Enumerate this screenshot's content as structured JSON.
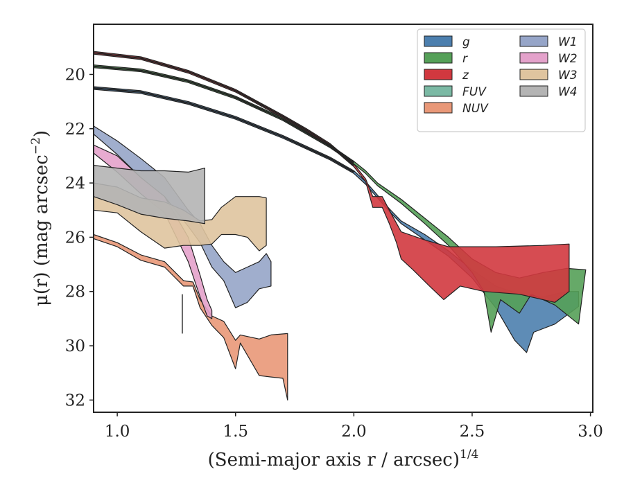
{
  "chart_data": {
    "type": "area",
    "xlabel": "(Semi-major axis r / arcsec)",
    "xlabel_sup": "1/4",
    "xlabel_italic_var": "r",
    "ylabel": "μ(r) (mag arcsec",
    "ylabel_sup": "−2",
    "xlim": [
      0.9,
      3.01
    ],
    "ylim": [
      32.45,
      18.15
    ],
    "y_inverted": true,
    "xticks": [
      1.0,
      1.5,
      2.0,
      2.5,
      3.0
    ],
    "xtick_labels": [
      "1.0",
      "1.5",
      "2.0",
      "2.5",
      "3.0"
    ],
    "yticks": [
      20,
      22,
      24,
      26,
      28,
      30,
      32
    ],
    "ytick_labels": [
      "20",
      "22",
      "24",
      "26",
      "28",
      "30",
      "32"
    ],
    "legend_position": "top-right",
    "legend_columns": 2,
    "series": [
      {
        "name": "g",
        "color": "#4c7fae",
        "upper": [
          [
            0.9,
            20.45
          ],
          [
            1.1,
            20.6
          ],
          [
            1.3,
            21.0
          ],
          [
            1.5,
            21.55
          ],
          [
            1.7,
            22.25
          ],
          [
            1.8,
            22.65
          ],
          [
            1.9,
            23.05
          ],
          [
            2.0,
            23.55
          ],
          [
            2.05,
            23.95
          ],
          [
            2.1,
            24.45
          ],
          [
            2.15,
            24.95
          ],
          [
            2.2,
            25.4
          ],
          [
            2.3,
            25.9
          ],
          [
            2.4,
            26.5
          ],
          [
            2.5,
            27.2
          ],
          [
            2.6,
            27.8
          ],
          [
            2.7,
            28.1
          ],
          [
            2.8,
            28.2
          ],
          [
            2.9,
            28.0
          ],
          [
            2.95,
            28.0
          ]
        ],
        "lower": [
          [
            0.9,
            20.55
          ],
          [
            1.1,
            20.7
          ],
          [
            1.3,
            21.1
          ],
          [
            1.5,
            21.65
          ],
          [
            1.7,
            22.35
          ],
          [
            1.8,
            22.75
          ],
          [
            1.9,
            23.15
          ],
          [
            2.0,
            23.65
          ],
          [
            2.05,
            24.05
          ],
          [
            2.1,
            24.55
          ],
          [
            2.15,
            25.05
          ],
          [
            2.2,
            25.5
          ],
          [
            2.3,
            26.1
          ],
          [
            2.4,
            26.7
          ],
          [
            2.5,
            27.5
          ],
          [
            2.6,
            28.6
          ],
          [
            2.68,
            29.8
          ],
          [
            2.73,
            30.25
          ],
          [
            2.76,
            29.5
          ],
          [
            2.85,
            29.2
          ],
          [
            2.95,
            28.55
          ]
        ]
      },
      {
        "name": "r",
        "color": "#55a058",
        "upper": [
          [
            0.9,
            19.65
          ],
          [
            1.1,
            19.8
          ],
          [
            1.3,
            20.2
          ],
          [
            1.5,
            20.8
          ],
          [
            1.7,
            21.6
          ],
          [
            1.8,
            22.1
          ],
          [
            1.9,
            22.6
          ],
          [
            2.0,
            23.2
          ],
          [
            2.05,
            23.55
          ],
          [
            2.1,
            24.0
          ],
          [
            2.2,
            24.6
          ],
          [
            2.3,
            25.3
          ],
          [
            2.4,
            26.0
          ],
          [
            2.5,
            26.8
          ],
          [
            2.6,
            27.3
          ],
          [
            2.7,
            27.5
          ],
          [
            2.8,
            27.3
          ],
          [
            2.9,
            27.15
          ],
          [
            2.98,
            27.2
          ]
        ],
        "lower": [
          [
            0.9,
            19.75
          ],
          [
            1.1,
            19.9
          ],
          [
            1.3,
            20.3
          ],
          [
            1.5,
            20.9
          ],
          [
            1.7,
            21.7
          ],
          [
            1.8,
            22.2
          ],
          [
            1.9,
            22.7
          ],
          [
            2.0,
            23.3
          ],
          [
            2.05,
            23.65
          ],
          [
            2.1,
            24.1
          ],
          [
            2.2,
            24.75
          ],
          [
            2.3,
            25.5
          ],
          [
            2.4,
            26.3
          ],
          [
            2.5,
            27.3
          ],
          [
            2.55,
            28.0
          ],
          [
            2.58,
            29.5
          ],
          [
            2.62,
            28.3
          ],
          [
            2.7,
            28.8
          ],
          [
            2.75,
            28.1
          ],
          [
            2.85,
            28.5
          ],
          [
            2.95,
            29.2
          ]
        ]
      },
      {
        "name": "z",
        "color": "#d1383f",
        "upper": [
          [
            0.9,
            19.15
          ],
          [
            1.1,
            19.35
          ],
          [
            1.3,
            19.85
          ],
          [
            1.5,
            20.55
          ],
          [
            1.7,
            21.5
          ],
          [
            1.8,
            22.0
          ],
          [
            1.9,
            22.55
          ],
          [
            2.0,
            23.3
          ],
          [
            2.05,
            23.85
          ],
          [
            2.08,
            24.5
          ],
          [
            2.12,
            24.5
          ],
          [
            2.15,
            25.0
          ],
          [
            2.2,
            25.8
          ],
          [
            2.3,
            26.1
          ],
          [
            2.4,
            26.35
          ],
          [
            2.6,
            26.35
          ],
          [
            2.8,
            26.3
          ],
          [
            2.91,
            26.25
          ]
        ],
        "lower": [
          [
            0.9,
            19.25
          ],
          [
            1.1,
            19.45
          ],
          [
            1.3,
            19.95
          ],
          [
            1.5,
            20.65
          ],
          [
            1.7,
            21.6
          ],
          [
            1.8,
            22.1
          ],
          [
            1.9,
            22.65
          ],
          [
            2.0,
            23.4
          ],
          [
            2.05,
            23.95
          ],
          [
            2.08,
            24.9
          ],
          [
            2.12,
            24.9
          ],
          [
            2.15,
            25.5
          ],
          [
            2.18,
            26.2
          ],
          [
            2.2,
            26.8
          ],
          [
            2.25,
            27.2
          ],
          [
            2.32,
            27.8
          ],
          [
            2.38,
            28.3
          ],
          [
            2.45,
            27.8
          ],
          [
            2.55,
            28.0
          ],
          [
            2.7,
            28.1
          ],
          [
            2.85,
            28.4
          ],
          [
            2.91,
            28.0
          ]
        ]
      },
      {
        "name": "FUV",
        "color": "#7bb9a4",
        "upper": [],
        "lower": []
      },
      {
        "name": "NUV",
        "color": "#e99878",
        "upper": [
          [
            0.9,
            25.9
          ],
          [
            1.0,
            26.2
          ],
          [
            1.1,
            26.65
          ],
          [
            1.2,
            26.9
          ],
          [
            1.28,
            27.6
          ],
          [
            1.32,
            27.65
          ],
          [
            1.35,
            28.3
          ],
          [
            1.4,
            28.9
          ],
          [
            1.45,
            29.1
          ],
          [
            1.5,
            29.8
          ],
          [
            1.52,
            29.6
          ],
          [
            1.6,
            29.75
          ],
          [
            1.65,
            29.6
          ],
          [
            1.72,
            29.55
          ]
        ],
        "lower": [
          [
            0.9,
            26.05
          ],
          [
            1.0,
            26.35
          ],
          [
            1.1,
            26.85
          ],
          [
            1.2,
            27.1
          ],
          [
            1.28,
            27.8
          ],
          [
            1.32,
            27.8
          ],
          [
            1.35,
            28.6
          ],
          [
            1.4,
            29.25
          ],
          [
            1.45,
            29.7
          ],
          [
            1.5,
            30.85
          ],
          [
            1.52,
            29.9
          ],
          [
            1.6,
            31.1
          ],
          [
            1.65,
            31.15
          ],
          [
            1.7,
            31.2
          ],
          [
            1.72,
            32.0
          ]
        ]
      },
      {
        "name": "W1",
        "color": "#96a5c8",
        "upper": [
          [
            0.9,
            21.9
          ],
          [
            1.0,
            22.45
          ],
          [
            1.1,
            23.1
          ],
          [
            1.2,
            23.8
          ],
          [
            1.3,
            25.0
          ],
          [
            1.35,
            25.5
          ],
          [
            1.4,
            26.3
          ],
          [
            1.45,
            26.9
          ],
          [
            1.5,
            27.3
          ],
          [
            1.55,
            27.1
          ],
          [
            1.6,
            26.9
          ],
          [
            1.63,
            26.6
          ],
          [
            1.65,
            26.9
          ]
        ],
        "lower": [
          [
            0.9,
            22.2
          ],
          [
            1.0,
            22.95
          ],
          [
            1.1,
            23.8
          ],
          [
            1.2,
            24.5
          ],
          [
            1.3,
            25.6
          ],
          [
            1.35,
            26.2
          ],
          [
            1.4,
            27.1
          ],
          [
            1.45,
            27.6
          ],
          [
            1.5,
            28.6
          ],
          [
            1.55,
            28.4
          ],
          [
            1.6,
            27.9
          ],
          [
            1.65,
            27.8
          ]
        ]
      },
      {
        "name": "W2",
        "color": "#e4a2cb",
        "upper": [
          [
            0.9,
            22.6
          ],
          [
            1.0,
            23.0
          ],
          [
            1.1,
            23.8
          ],
          [
            1.2,
            24.5
          ],
          [
            1.3,
            26.0
          ],
          [
            1.35,
            27.4
          ],
          [
            1.38,
            28.3
          ],
          [
            1.4,
            28.7
          ]
        ],
        "lower": [
          [
            0.9,
            22.9
          ],
          [
            1.0,
            23.6
          ],
          [
            1.1,
            24.4
          ],
          [
            1.2,
            25.1
          ],
          [
            1.3,
            26.9
          ],
          [
            1.35,
            28.2
          ],
          [
            1.38,
            28.9
          ],
          [
            1.4,
            29.0
          ]
        ]
      },
      {
        "name": "W3",
        "color": "#dfc49f",
        "upper": [
          [
            0.9,
            24.0
          ],
          [
            1.0,
            24.15
          ],
          [
            1.1,
            24.55
          ],
          [
            1.2,
            24.7
          ],
          [
            1.28,
            25.0
          ],
          [
            1.35,
            25.4
          ],
          [
            1.4,
            25.35
          ],
          [
            1.44,
            24.9
          ],
          [
            1.5,
            24.5
          ],
          [
            1.55,
            24.5
          ],
          [
            1.6,
            24.5
          ],
          [
            1.63,
            24.55
          ]
        ],
        "lower": [
          [
            0.9,
            25.0
          ],
          [
            1.0,
            25.1
          ],
          [
            1.1,
            25.8
          ],
          [
            1.2,
            26.4
          ],
          [
            1.28,
            26.3
          ],
          [
            1.35,
            26.3
          ],
          [
            1.4,
            26.25
          ],
          [
            1.44,
            25.9
          ],
          [
            1.5,
            25.9
          ],
          [
            1.55,
            26.0
          ],
          [
            1.6,
            26.5
          ],
          [
            1.63,
            26.3
          ]
        ]
      },
      {
        "name": "W4",
        "color": "#b4b4b4",
        "upper": [
          [
            0.9,
            23.35
          ],
          [
            1.0,
            23.45
          ],
          [
            1.1,
            23.55
          ],
          [
            1.2,
            23.55
          ],
          [
            1.3,
            23.6
          ],
          [
            1.37,
            23.45
          ]
        ],
        "lower": [
          [
            0.9,
            24.5
          ],
          [
            1.0,
            24.8
          ],
          [
            1.1,
            25.15
          ],
          [
            1.2,
            25.3
          ],
          [
            1.3,
            25.4
          ],
          [
            1.37,
            25.5
          ]
        ]
      }
    ],
    "vertical_marker": {
      "x": 1.275,
      "y_from": 28.1,
      "y_to": 29.55
    }
  }
}
